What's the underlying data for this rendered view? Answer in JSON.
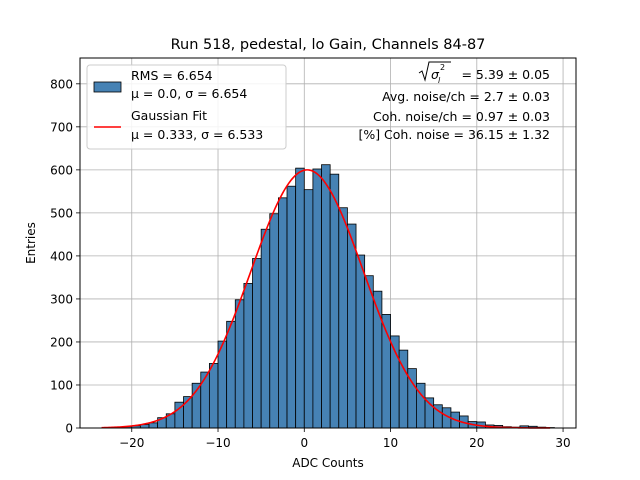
{
  "chart_data": {
    "type": "bar",
    "title": "Run 518, pedestal, lo Gain, Channels 84-87",
    "xlabel": "ADC Counts",
    "ylabel": "Entries",
    "xlim": [
      -26,
      31.5
    ],
    "ylim": [
      0,
      860
    ],
    "xticks": [
      -20,
      -10,
      0,
      10,
      20,
      30
    ],
    "xtick_labels": [
      "−20",
      "−10",
      "0",
      "10",
      "20",
      "30"
    ],
    "yticks": [
      0,
      100,
      200,
      300,
      400,
      500,
      600,
      700,
      800
    ],
    "ytick_labels": [
      "0",
      "100",
      "200",
      "300",
      "400",
      "500",
      "600",
      "700",
      "800"
    ],
    "grid": true,
    "bins": {
      "start": -23.0,
      "width": 1.0,
      "counts": [
        1,
        2,
        3,
        5,
        8,
        12,
        24,
        33,
        60,
        73,
        104,
        130,
        150,
        202,
        248,
        298,
        336,
        394,
        462,
        498,
        535,
        562,
        604,
        554,
        602,
        612,
        590,
        512,
        474,
        402,
        354,
        318,
        264,
        214,
        181,
        138,
        104,
        70,
        54,
        47,
        37,
        28,
        15,
        14,
        7,
        6,
        3,
        2,
        5,
        4,
        2,
        1
      ]
    },
    "histogram_color": "#4682b4",
    "fit": {
      "name": "Gaussian Fit",
      "color": "#ff0000",
      "mu": 0.333,
      "sigma": 6.533,
      "amplitude": 600,
      "x_range": [
        -23.5,
        28.5
      ]
    },
    "legend": {
      "location": "upper left",
      "entries": [
        {
          "kind": "patch",
          "color": "#4682b4",
          "line1": "RMS = 6.654",
          "line2": "μ = 0.0, σ = 6.654"
        },
        {
          "kind": "line",
          "color": "#ff0000",
          "line1": "Gaussian Fit",
          "line2": "μ = 0.333, σ = 6.533"
        }
      ]
    },
    "annotations": {
      "sqrt_sigma": "= 5.39 ± 0.05",
      "lines": [
        "Avg. noise/ch = 2.7 ± 0.03",
        "Coh. noise/ch = 0.97 ± 0.03",
        "[%] Coh. noise = 36.15 ± 1.32"
      ]
    }
  }
}
